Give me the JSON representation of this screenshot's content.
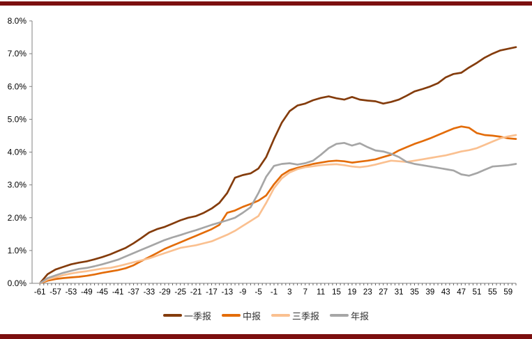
{
  "colors": {
    "accent_bar": "#7c0f0f",
    "axis_line": "#808080",
    "tick_mark": "#666666",
    "tick_label": "#000000"
  },
  "chart_data": {
    "type": "line",
    "grid": false,
    "legend_position": "bottom",
    "ylim": [
      0,
      8
    ],
    "xlim": [
      -63,
      61
    ],
    "y_tick_labels": [
      "0.0%",
      "1.0%",
      "2.0%",
      "3.0%",
      "4.0%",
      "5.0%",
      "6.0%",
      "7.0%",
      "8.0%"
    ],
    "x_tick_labels": [
      -61,
      -57,
      -53,
      -49,
      -45,
      -41,
      -37,
      -33,
      -29,
      -25,
      -21,
      -17,
      -13,
      -9,
      -5,
      -1,
      3,
      7,
      11,
      15,
      19,
      23,
      27,
      31,
      35,
      39,
      43,
      47,
      51,
      55,
      59
    ],
    "x": [
      -61,
      -59,
      -57,
      -55,
      -53,
      -51,
      -49,
      -47,
      -45,
      -43,
      -41,
      -39,
      -37,
      -35,
      -33,
      -31,
      -29,
      -27,
      -25,
      -23,
      -21,
      -19,
      -17,
      -15,
      -13,
      -11,
      -9,
      -7,
      -5,
      -3,
      -1,
      1,
      3,
      5,
      7,
      9,
      11,
      13,
      15,
      17,
      19,
      21,
      23,
      25,
      27,
      29,
      31,
      33,
      35,
      37,
      39,
      41,
      43,
      45,
      47,
      49,
      51,
      53,
      55,
      57,
      59,
      61
    ],
    "series": [
      {
        "name": "一季报",
        "color": "#843c0c",
        "values": [
          0.0,
          0.28,
          0.42,
          0.5,
          0.58,
          0.63,
          0.67,
          0.73,
          0.8,
          0.88,
          0.98,
          1.08,
          1.22,
          1.38,
          1.55,
          1.65,
          1.72,
          1.82,
          1.92,
          2.0,
          2.05,
          2.15,
          2.28,
          2.45,
          2.75,
          3.22,
          3.3,
          3.35,
          3.5,
          3.85,
          4.4,
          4.9,
          5.25,
          5.42,
          5.48,
          5.58,
          5.65,
          5.7,
          5.64,
          5.6,
          5.68,
          5.6,
          5.57,
          5.55,
          5.48,
          5.53,
          5.6,
          5.72,
          5.85,
          5.92,
          6.0,
          6.1,
          6.28,
          6.38,
          6.42,
          6.58,
          6.72,
          6.88,
          7.0,
          7.1,
          7.15,
          7.2
        ]
      },
      {
        "name": "中报",
        "color": "#e36c09",
        "values": [
          0.0,
          0.08,
          0.13,
          0.16,
          0.18,
          0.2,
          0.23,
          0.27,
          0.32,
          0.36,
          0.4,
          0.46,
          0.55,
          0.68,
          0.8,
          0.92,
          1.05,
          1.15,
          1.25,
          1.35,
          1.45,
          1.55,
          1.65,
          1.78,
          2.15,
          2.22,
          2.33,
          2.42,
          2.52,
          2.68,
          3.02,
          3.3,
          3.45,
          3.52,
          3.58,
          3.64,
          3.68,
          3.72,
          3.74,
          3.72,
          3.68,
          3.71,
          3.74,
          3.78,
          3.85,
          3.92,
          4.05,
          4.15,
          4.25,
          4.33,
          4.42,
          4.52,
          4.62,
          4.72,
          4.78,
          4.74,
          4.58,
          4.52,
          4.5,
          4.47,
          4.42,
          4.4
        ]
      },
      {
        "name": "三季报",
        "color": "#fac090",
        "values": [
          0.0,
          0.12,
          0.18,
          0.25,
          0.3,
          0.34,
          0.37,
          0.41,
          0.45,
          0.47,
          0.52,
          0.58,
          0.64,
          0.7,
          0.76,
          0.84,
          0.92,
          1.0,
          1.08,
          1.12,
          1.16,
          1.22,
          1.28,
          1.38,
          1.48,
          1.6,
          1.75,
          1.9,
          2.05,
          2.45,
          2.9,
          3.2,
          3.38,
          3.48,
          3.54,
          3.57,
          3.6,
          3.62,
          3.63,
          3.6,
          3.56,
          3.54,
          3.57,
          3.62,
          3.68,
          3.74,
          3.72,
          3.7,
          3.74,
          3.78,
          3.82,
          3.86,
          3.9,
          3.96,
          4.02,
          4.06,
          4.12,
          4.22,
          4.32,
          4.42,
          4.48,
          4.52
        ]
      },
      {
        "name": "年报",
        "color": "#a6a6a6",
        "values": [
          0.0,
          0.16,
          0.24,
          0.32,
          0.38,
          0.44,
          0.47,
          0.52,
          0.58,
          0.65,
          0.72,
          0.82,
          0.92,
          1.02,
          1.12,
          1.22,
          1.32,
          1.4,
          1.47,
          1.55,
          1.62,
          1.7,
          1.78,
          1.85,
          1.92,
          2.0,
          2.15,
          2.32,
          2.75,
          3.25,
          3.58,
          3.64,
          3.66,
          3.62,
          3.66,
          3.74,
          3.92,
          4.12,
          4.25,
          4.28,
          4.2,
          4.27,
          4.15,
          4.05,
          4.02,
          3.95,
          3.85,
          3.7,
          3.64,
          3.6,
          3.56,
          3.52,
          3.48,
          3.44,
          3.32,
          3.28,
          3.36,
          3.46,
          3.56,
          3.58,
          3.6,
          3.64
        ]
      }
    ]
  }
}
